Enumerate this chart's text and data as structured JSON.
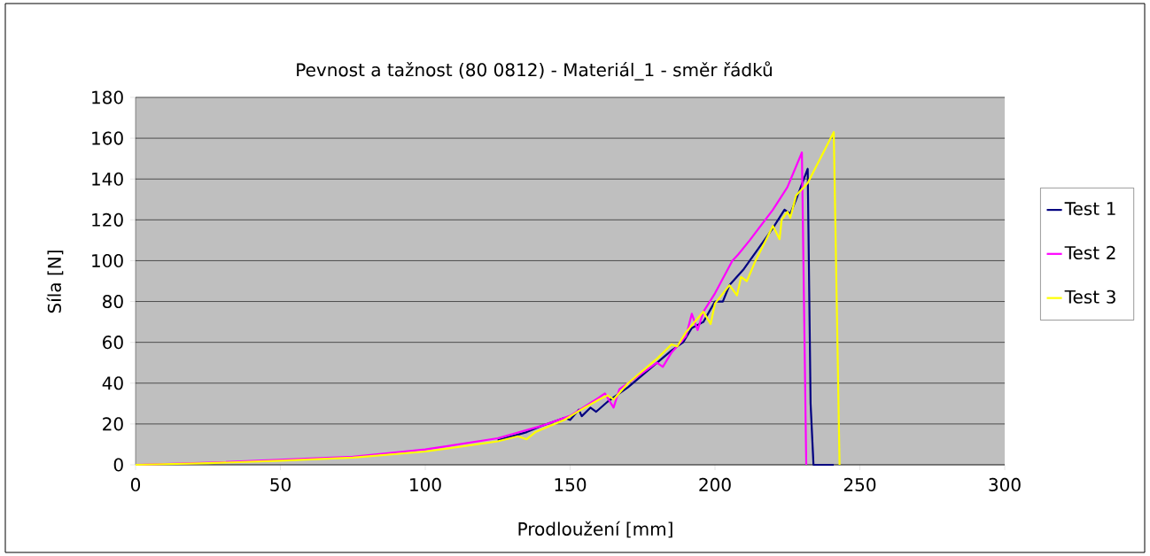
{
  "chart_data": {
    "type": "line",
    "title": "Pevnost a tažnost (80 0812) - Materiál_1 - směr řádků",
    "xlabel": "Prodloužení [mm]",
    "ylabel": "Síla [N]",
    "xlim": [
      0,
      300
    ],
    "ylim": [
      0,
      180
    ],
    "xticks": [
      0,
      50,
      100,
      150,
      200,
      250,
      300
    ],
    "yticks": [
      0,
      20,
      40,
      60,
      80,
      100,
      120,
      140,
      160,
      180
    ],
    "grid": "y",
    "legend": "right",
    "marker": "none",
    "line_style": "solid",
    "series": [
      {
        "name": "Test 1",
        "color": "#000080",
        "x": [
          125,
          135,
          140,
          148,
          150,
          153,
          154,
          157,
          159,
          163,
          170,
          175,
          180,
          185,
          189,
          192,
          196,
          200,
          202.7,
          205,
          210,
          215,
          220,
          224,
          226,
          228,
          232,
          233,
          234,
          241
        ],
        "values": [
          12,
          16,
          19,
          23,
          22,
          27,
          23.8,
          28,
          26,
          31,
          38,
          44,
          50,
          56,
          60,
          67,
          70,
          80,
          80,
          88,
          96,
          106,
          116,
          125,
          123,
          130,
          145,
          30,
          0,
          0
        ]
      },
      {
        "name": "Test 2",
        "color": "#ff00ff",
        "x": [
          0,
          25,
          50,
          75,
          100,
          125,
          140,
          150,
          160,
          162,
          165,
          167,
          175,
          180,
          182,
          185,
          190,
          192,
          194,
          196,
          200,
          206,
          208,
          212,
          220,
          225,
          230,
          231.5
        ],
        "values": [
          0,
          1,
          2.5,
          4,
          7.5,
          13,
          19,
          24,
          33,
          35,
          28,
          37,
          45,
          50,
          48,
          55,
          63,
          74,
          66,
          75,
          84,
          100,
          103,
          110,
          125,
          136,
          153,
          0
        ]
      },
      {
        "name": "Test 3",
        "color": "#ffff00",
        "x": [
          0,
          25,
          50,
          75,
          100,
          125,
          132,
          135,
          138,
          148,
          155,
          160,
          163,
          165,
          170,
          180,
          185,
          187,
          190,
          196,
          198.5,
          200,
          205,
          207.6,
          209,
          211,
          214,
          220,
          222.3,
          223,
          225,
          226,
          228,
          232,
          241,
          243
        ],
        "values": [
          0,
          0.8,
          2,
          3.5,
          6.5,
          11.5,
          14,
          12.5,
          16,
          22,
          28,
          32,
          34,
          32,
          40,
          52,
          59,
          58,
          65,
          75,
          69,
          79,
          88,
          83,
          92,
          90,
          100,
          117,
          110.5,
          120,
          124,
          121,
          132,
          138,
          163,
          0
        ]
      }
    ]
  }
}
